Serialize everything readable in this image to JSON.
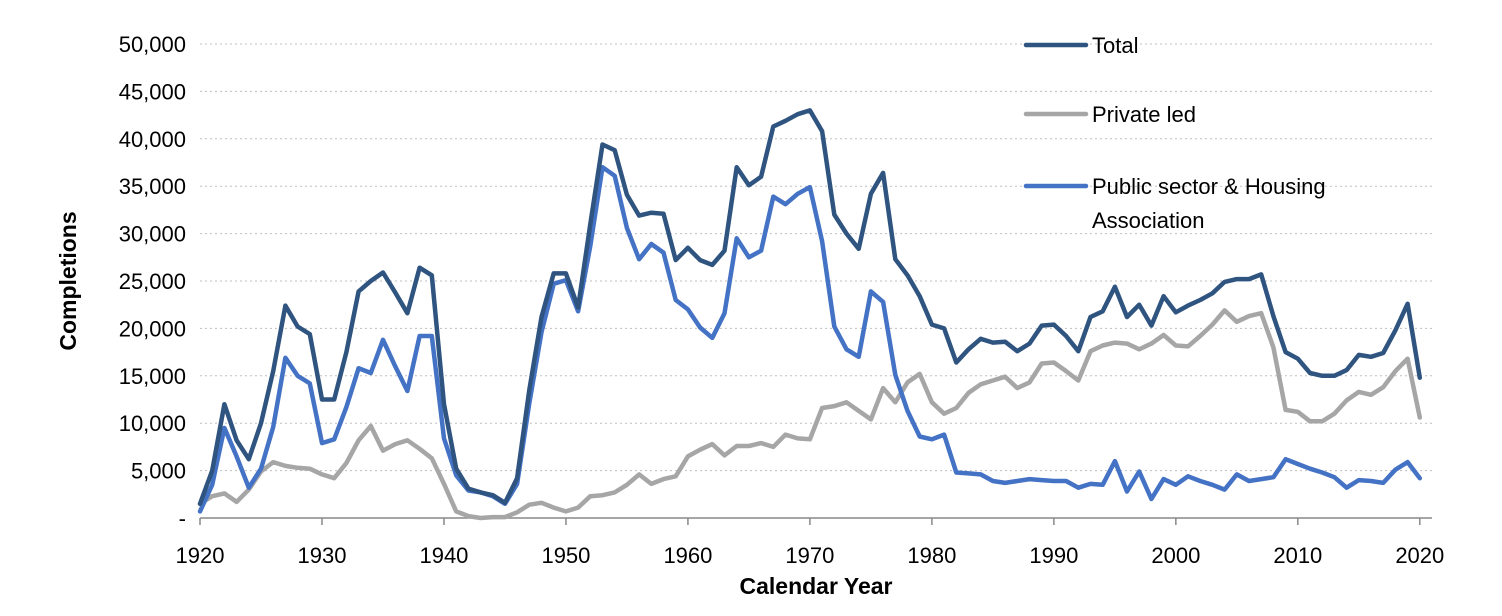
{
  "chart_data": {
    "type": "line",
    "xlabel": "Calendar Year",
    "ylabel": "Completions",
    "x_ticks": [
      "1920",
      "1930",
      "1940",
      "1950",
      "1960",
      "1970",
      "1980",
      "1990",
      "2000",
      "2010",
      "2020"
    ],
    "y_ticks": [
      "-",
      "5,000",
      "10,000",
      "15,000",
      "20,000",
      "25,000",
      "30,000",
      "35,000",
      "40,000",
      "45,000",
      "50,000"
    ],
    "xlim": [
      1920,
      2021
    ],
    "ylim": [
      0,
      50000
    ],
    "grid": "horizontal dotted",
    "legend_position": "top-right",
    "x": [
      1920,
      1921,
      1922,
      1923,
      1924,
      1925,
      1926,
      1927,
      1928,
      1929,
      1930,
      1931,
      1932,
      1933,
      1934,
      1935,
      1936,
      1937,
      1938,
      1939,
      1940,
      1941,
      1942,
      1943,
      1944,
      1945,
      1946,
      1947,
      1948,
      1949,
      1950,
      1951,
      1952,
      1953,
      1954,
      1955,
      1956,
      1957,
      1958,
      1959,
      1960,
      1961,
      1962,
      1963,
      1964,
      1965,
      1966,
      1967,
      1968,
      1969,
      1970,
      1971,
      1972,
      1973,
      1974,
      1975,
      1976,
      1977,
      1978,
      1979,
      1980,
      1981,
      1982,
      1983,
      1984,
      1985,
      1986,
      1987,
      1988,
      1989,
      1990,
      1991,
      1992,
      1993,
      1994,
      1995,
      1996,
      1997,
      1998,
      1999,
      2000,
      2001,
      2002,
      2003,
      2004,
      2005,
      2006,
      2007,
      2008,
      2009,
      2010,
      2011,
      2012,
      2013,
      2014,
      2015,
      2016,
      2017,
      2018,
      2019,
      2020
    ],
    "series": [
      {
        "name": "Total",
        "color": "#2f5480",
        "values": [
          1500,
          5000,
          12000,
          8200,
          6200,
          10000,
          15500,
          22400,
          20200,
          19400,
          12500,
          12500,
          17500,
          23900,
          25000,
          25900,
          23800,
          21600,
          26400,
          25600,
          12000,
          5200,
          3100,
          2700,
          2400,
          1600,
          4200,
          13500,
          21200,
          25800,
          25800,
          22200,
          31000,
          39400,
          38800,
          34100,
          31900,
          32200,
          32100,
          27200,
          28500,
          27200,
          26700,
          28200,
          37000,
          35100,
          36000,
          41300,
          41900,
          42600,
          43000,
          40800,
          32000,
          30000,
          28400,
          34200,
          36400,
          27300,
          25600,
          23400,
          20400,
          20000,
          16400,
          17800,
          18900,
          18500,
          18600,
          17600,
          18400,
          20300,
          20400,
          19200,
          17600,
          21200,
          21800,
          24400,
          21200,
          22500,
          20300,
          23400,
          21700,
          22400,
          23000,
          23700,
          24900,
          25200,
          25200,
          25700,
          21300,
          17500,
          16800,
          15300,
          15000,
          15000,
          15600,
          17200,
          17000,
          17400,
          19800,
          22600,
          14800
        ]
      },
      {
        "name": "Private led",
        "color": "#a6a6a6",
        "values": [
          1500,
          2300,
          2600,
          1700,
          3000,
          4900,
          5900,
          5500,
          5300,
          5200,
          4600,
          4200,
          5800,
          8200,
          9700,
          7100,
          7800,
          8200,
          7300,
          6300,
          3600,
          700,
          200,
          0,
          100,
          100,
          600,
          1400,
          1600,
          1100,
          700,
          1100,
          2300,
          2400,
          2700,
          3500,
          4600,
          3600,
          4100,
          4400,
          6500,
          7200,
          7800,
          6600,
          7600,
          7600,
          7900,
          7500,
          8800,
          8400,
          8300,
          11600,
          11800,
          12200,
          11300,
          10400,
          13700,
          12200,
          14300,
          15200,
          12200,
          11000,
          11600,
          13200,
          14100,
          14500,
          14900,
          13700,
          14300,
          16300,
          16400,
          15500,
          14500,
          17600,
          18200,
          18500,
          18400,
          17800,
          18400,
          19300,
          18200,
          18100,
          19200,
          20400,
          21900,
          20700,
          21300,
          21600,
          18000,
          11400,
          11200,
          10200,
          10200,
          11000,
          12400,
          13300,
          13000,
          13800,
          15500,
          16800,
          10600
        ]
      },
      {
        "name": "Public sector & Housing Association",
        "color": "#4472c4",
        "values": [
          700,
          3500,
          9500,
          6500,
          3200,
          5200,
          9600,
          16900,
          15000,
          14200,
          7900,
          8300,
          11700,
          15800,
          15300,
          18800,
          16000,
          13400,
          19200,
          19200,
          8400,
          4500,
          2900,
          2700,
          2300,
          1500,
          3600,
          12100,
          19600,
          24700,
          25100,
          21800,
          28700,
          37000,
          36100,
          30600,
          27300,
          28900,
          28000,
          23000,
          22000,
          20100,
          19000,
          21600,
          29500,
          27500,
          28200,
          33900,
          33100,
          34200,
          34900,
          29200,
          20200,
          17800,
          17000,
          23900,
          22800,
          15100,
          11300,
          8600,
          8300,
          8800,
          4800,
          4700,
          4600,
          3900,
          3700,
          3900,
          4100,
          4000,
          3900,
          3900,
          3200,
          3600,
          3500,
          6000,
          2800,
          4900,
          2000,
          4100,
          3500,
          4400,
          3900,
          3500,
          3000,
          4600,
          3900,
          4100,
          4300,
          6200,
          5700,
          5200,
          4800,
          4300,
          3200,
          4000,
          3900,
          3700,
          5100,
          5900,
          4200
        ]
      }
    ]
  }
}
